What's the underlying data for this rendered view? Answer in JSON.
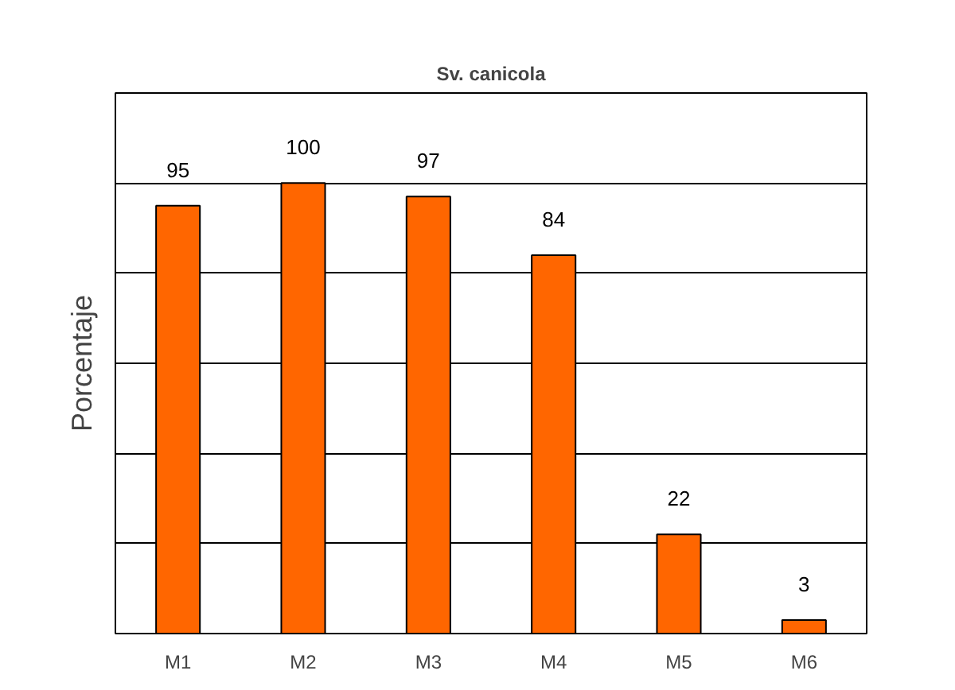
{
  "chart_data": {
    "type": "bar",
    "title": "Sv. canicola",
    "ylabel": "Porcentaje",
    "categories": [
      "M1",
      "M2",
      "M3",
      "M4",
      "M5",
      "M6"
    ],
    "values": [
      95,
      100,
      97,
      84,
      22,
      3
    ],
    "color": "#ff6600",
    "ylim": [
      0,
      120
    ],
    "yticks": [
      {
        "value": 0,
        "label": null
      },
      {
        "value": 20,
        "label": null
      },
      {
        "value": 40,
        "label": null
      },
      {
        "value": 60,
        "label": null
      },
      {
        "value": 80,
        "label": null
      },
      {
        "value": 100,
        "label": null
      },
      {
        "value": 120,
        "label": null
      }
    ],
    "tick_labels": "x",
    "grid": "y",
    "data_labels": true
  }
}
